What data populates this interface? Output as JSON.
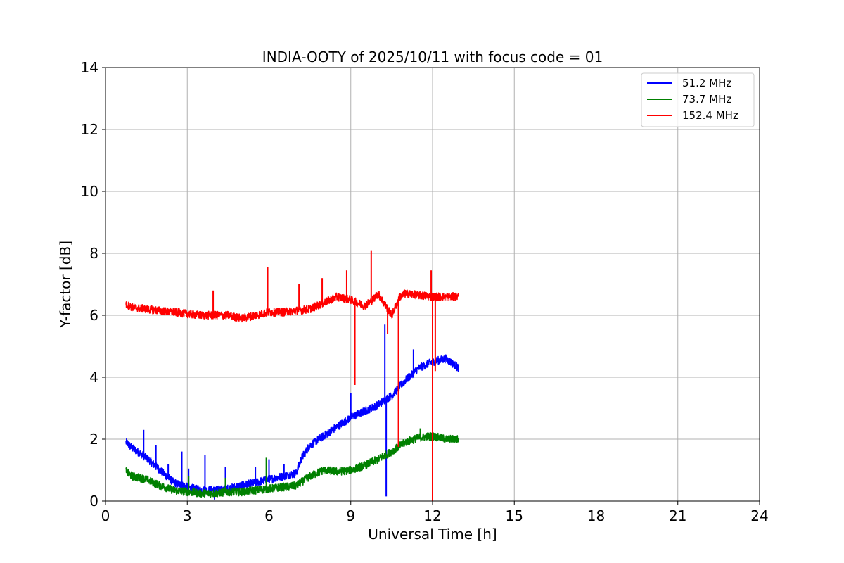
{
  "chart_data": {
    "type": "line",
    "title": "INDIA-OOTY of 2025/10/11 with focus code = 01",
    "xlabel": "Universal Time [h]",
    "ylabel": "Y-factor [dB]",
    "xlim": [
      0,
      24
    ],
    "ylim": [
      0,
      14
    ],
    "xticks": [
      0,
      3,
      6,
      9,
      12,
      15,
      18,
      21,
      24
    ],
    "yticks": [
      0,
      2,
      4,
      6,
      8,
      10,
      12,
      14
    ],
    "grid": true,
    "legend_position": "top-right",
    "series": [
      {
        "name": "  51.2 MHz",
        "color": "#0000ff",
        "x": [
          0.75,
          1.0,
          1.5,
          2.0,
          2.5,
          3.0,
          3.5,
          4.0,
          4.5,
          5.0,
          5.5,
          6.0,
          6.5,
          7.0,
          7.2,
          7.5,
          8.0,
          8.5,
          9.0,
          9.5,
          10.0,
          10.3,
          10.5,
          11.0,
          11.5,
          12.0,
          12.5,
          12.95
        ],
        "y": [
          1.9,
          1.7,
          1.4,
          1.0,
          0.6,
          0.45,
          0.35,
          0.35,
          0.4,
          0.5,
          0.6,
          0.7,
          0.8,
          0.9,
          1.4,
          1.8,
          2.1,
          2.4,
          2.7,
          2.9,
          3.1,
          3.3,
          3.4,
          3.9,
          4.3,
          4.5,
          4.6,
          4.3
        ],
        "spikes": [
          {
            "x": 1.4,
            "y": 2.3
          },
          {
            "x": 1.85,
            "y": 1.8
          },
          {
            "x": 2.3,
            "y": 1.2
          },
          {
            "x": 2.8,
            "y": 1.6
          },
          {
            "x": 3.05,
            "y": 1.05
          },
          {
            "x": 3.65,
            "y": 1.5
          },
          {
            "x": 4.0,
            "y": 0.05
          },
          {
            "x": 4.4,
            "y": 1.1
          },
          {
            "x": 5.5,
            "y": 1.1
          },
          {
            "x": 6.0,
            "y": 1.35
          },
          {
            "x": 6.55,
            "y": 1.2
          },
          {
            "x": 8.4,
            "y": 2.5
          },
          {
            "x": 9.0,
            "y": 3.5
          },
          {
            "x": 10.25,
            "y": 5.7
          },
          {
            "x": 10.3,
            "y": 0.15
          },
          {
            "x": 11.3,
            "y": 4.9
          }
        ]
      },
      {
        "name": "  73.7 MHz",
        "color": "#008000",
        "x": [
          0.75,
          1.0,
          1.5,
          2.0,
          2.5,
          3.0,
          3.5,
          4.0,
          4.5,
          5.0,
          5.5,
          6.0,
          6.5,
          7.0,
          7.5,
          8.0,
          8.5,
          9.0,
          9.5,
          10.0,
          10.5,
          11.0,
          11.5,
          12.0,
          12.5,
          12.95
        ],
        "y": [
          0.95,
          0.8,
          0.7,
          0.5,
          0.35,
          0.3,
          0.25,
          0.25,
          0.3,
          0.3,
          0.35,
          0.4,
          0.45,
          0.5,
          0.8,
          1.0,
          0.95,
          1.0,
          1.15,
          1.35,
          1.6,
          1.9,
          2.05,
          2.1,
          2.0,
          2.0
        ],
        "spikes": [
          {
            "x": 3.05,
            "y": 0.8
          },
          {
            "x": 4.4,
            "y": 0.75
          },
          {
            "x": 5.9,
            "y": 1.4
          },
          {
            "x": 11.55,
            "y": 2.35
          }
        ]
      },
      {
        "name": "152.4 MHz",
        "color": "#ff0000",
        "x": [
          0.75,
          1.0,
          1.5,
          2.0,
          2.5,
          3.0,
          3.5,
          4.0,
          4.5,
          5.0,
          5.5,
          6.0,
          6.5,
          7.0,
          7.5,
          8.0,
          8.5,
          9.0,
          9.5,
          9.8,
          10.0,
          10.5,
          10.8,
          11.0,
          11.5,
          12.0,
          12.5,
          12.95
        ],
        "y": [
          6.35,
          6.25,
          6.2,
          6.15,
          6.1,
          6.05,
          6.0,
          6.0,
          6.0,
          5.9,
          6.0,
          6.1,
          6.1,
          6.15,
          6.2,
          6.4,
          6.6,
          6.5,
          6.3,
          6.5,
          6.7,
          6.0,
          6.6,
          6.7,
          6.65,
          6.6,
          6.6,
          6.6
        ],
        "spikes": [
          {
            "x": 3.95,
            "y": 6.8
          },
          {
            "x": 5.95,
            "y": 7.55
          },
          {
            "x": 7.1,
            "y": 7.0
          },
          {
            "x": 7.95,
            "y": 7.2
          },
          {
            "x": 8.85,
            "y": 7.45
          },
          {
            "x": 9.15,
            "y": 3.75
          },
          {
            "x": 9.75,
            "y": 8.1
          },
          {
            "x": 10.35,
            "y": 5.4
          },
          {
            "x": 10.75,
            "y": 1.75
          },
          {
            "x": 11.95,
            "y": 7.45
          },
          {
            "x": 12.0,
            "y": 0.0
          },
          {
            "x": 12.1,
            "y": 4.2
          }
        ]
      }
    ]
  }
}
